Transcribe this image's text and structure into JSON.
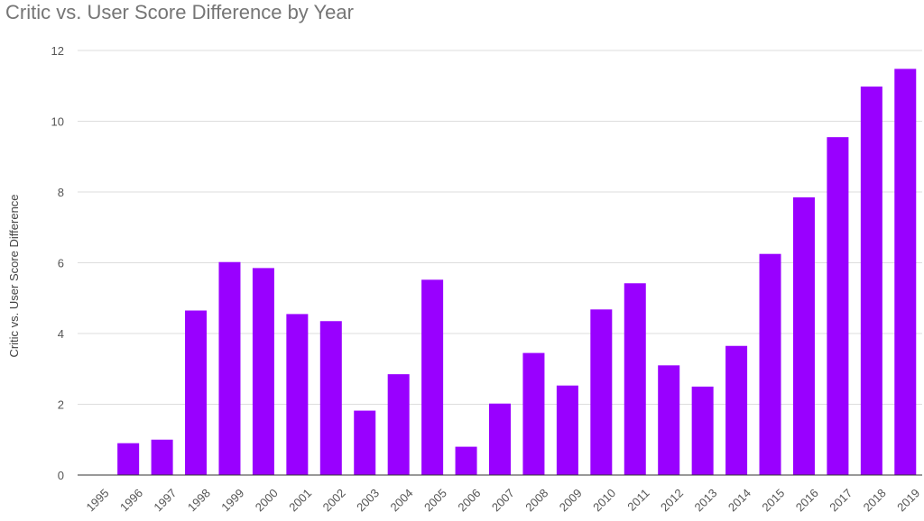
{
  "chart_data": {
    "type": "bar",
    "title": "Critic vs. User Score Difference by Year",
    "xlabel": "",
    "ylabel": "Critic vs. User Score Difference",
    "categories": [
      "1995",
      "1996",
      "1997",
      "1998",
      "1999",
      "2000",
      "2001",
      "2002",
      "2003",
      "2004",
      "2005",
      "2006",
      "2007",
      "2008",
      "2009",
      "2010",
      "2011",
      "2012",
      "2013",
      "2014",
      "2015",
      "2016",
      "2017",
      "2018",
      "2019"
    ],
    "values": [
      0,
      0.9,
      1.0,
      4.65,
      6.02,
      5.85,
      4.55,
      4.35,
      1.82,
      2.85,
      5.52,
      0.8,
      2.02,
      3.45,
      2.53,
      4.68,
      5.42,
      3.1,
      2.5,
      3.65,
      6.25,
      7.85,
      9.55,
      10.98,
      11.48
    ],
    "ylim": [
      0,
      12
    ],
    "yticks": [
      0,
      2,
      4,
      6,
      8,
      10,
      12
    ],
    "grid": true,
    "legend": "none",
    "colors": {
      "bar": "#9900ff",
      "grid": "#dddddd",
      "baseline": "#333333",
      "title": "#757575"
    }
  }
}
